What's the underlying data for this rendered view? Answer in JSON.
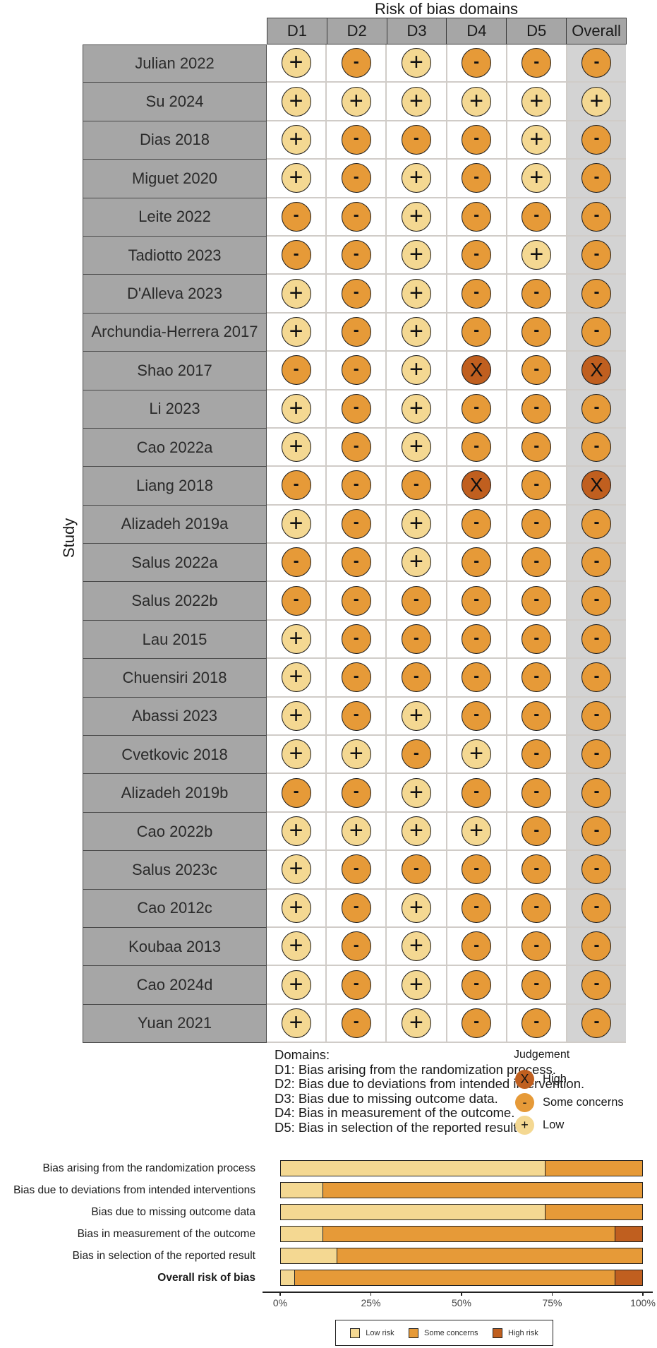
{
  "traffic_light": {
    "title": "Risk of bias domains",
    "y_label": "Study",
    "columns": [
      "D1",
      "D2",
      "D3",
      "D4",
      "D5",
      "Overall"
    ],
    "symbols": {
      "low": "+",
      "some": "-",
      "high": "X"
    },
    "colors": {
      "low": "#f4d892",
      "some": "#e69a38",
      "high": "#c05f1f",
      "label_bg": "#a6a6a6",
      "overall_bg": "#d3d3d3"
    },
    "studies": [
      {
        "name": "Julian 2022",
        "judgements": [
          "low",
          "some",
          "low",
          "some",
          "some",
          "some"
        ]
      },
      {
        "name": "Su 2024",
        "judgements": [
          "low",
          "low",
          "low",
          "low",
          "low",
          "low"
        ]
      },
      {
        "name": "Dias 2018",
        "judgements": [
          "low",
          "some",
          "some",
          "some",
          "low",
          "some"
        ]
      },
      {
        "name": "Miguet 2020",
        "judgements": [
          "low",
          "some",
          "low",
          "some",
          "low",
          "some"
        ]
      },
      {
        "name": "Leite 2022",
        "judgements": [
          "some",
          "some",
          "low",
          "some",
          "some",
          "some"
        ]
      },
      {
        "name": "Tadiotto 2023",
        "judgements": [
          "some",
          "some",
          "low",
          "some",
          "low",
          "some"
        ]
      },
      {
        "name": "D'Alleva 2023",
        "judgements": [
          "low",
          "some",
          "low",
          "some",
          "some",
          "some"
        ]
      },
      {
        "name": "Archundia-Herrera 2017",
        "judgements": [
          "low",
          "some",
          "low",
          "some",
          "some",
          "some"
        ]
      },
      {
        "name": "Shao 2017",
        "judgements": [
          "some",
          "some",
          "low",
          "high",
          "some",
          "high"
        ]
      },
      {
        "name": "Li 2023",
        "judgements": [
          "low",
          "some",
          "low",
          "some",
          "some",
          "some"
        ]
      },
      {
        "name": "Cao 2022a",
        "judgements": [
          "low",
          "some",
          "low",
          "some",
          "some",
          "some"
        ]
      },
      {
        "name": "Liang 2018",
        "judgements": [
          "some",
          "some",
          "some",
          "high",
          "some",
          "high"
        ]
      },
      {
        "name": "Alizadeh 2019a",
        "judgements": [
          "low",
          "some",
          "low",
          "some",
          "some",
          "some"
        ]
      },
      {
        "name": "Salus 2022a",
        "judgements": [
          "some",
          "some",
          "low",
          "some",
          "some",
          "some"
        ]
      },
      {
        "name": "Salus 2022b",
        "judgements": [
          "some",
          "some",
          "some",
          "some",
          "some",
          "some"
        ]
      },
      {
        "name": "Lau 2015",
        "judgements": [
          "low",
          "some",
          "some",
          "some",
          "some",
          "some"
        ]
      },
      {
        "name": "Chuensiri 2018",
        "judgements": [
          "low",
          "some",
          "some",
          "some",
          "some",
          "some"
        ]
      },
      {
        "name": "Abassi 2023",
        "judgements": [
          "low",
          "some",
          "low",
          "some",
          "some",
          "some"
        ]
      },
      {
        "name": "Cvetkovic 2018",
        "judgements": [
          "low",
          "low",
          "some",
          "low",
          "some",
          "some"
        ]
      },
      {
        "name": "Alizadeh 2019b",
        "judgements": [
          "some",
          "some",
          "low",
          "some",
          "some",
          "some"
        ]
      },
      {
        "name": "Cao 2022b",
        "judgements": [
          "low",
          "low",
          "low",
          "low",
          "some",
          "some"
        ]
      },
      {
        "name": "Salus 2023c",
        "judgements": [
          "low",
          "some",
          "some",
          "some",
          "some",
          "some"
        ]
      },
      {
        "name": "Cao 2012c",
        "judgements": [
          "low",
          "some",
          "low",
          "some",
          "some",
          "some"
        ]
      },
      {
        "name": "Koubaa 2013",
        "judgements": [
          "low",
          "some",
          "low",
          "some",
          "some",
          "some"
        ]
      },
      {
        "name": "Cao 2024d",
        "judgements": [
          "low",
          "some",
          "low",
          "some",
          "some",
          "some"
        ]
      },
      {
        "name": "Yuan 2021",
        "judgements": [
          "low",
          "some",
          "low",
          "some",
          "some",
          "some"
        ]
      }
    ],
    "domains_legend": {
      "heading": "Domains:",
      "lines": [
        "D1: Bias arising from the randomization process.",
        "D2: Bias due to deviations from intended intervention.",
        "D3: Bias due to missing outcome data.",
        "D4: Bias in measurement of the outcome.",
        "D5: Bias in selection of the reported result."
      ]
    },
    "judgement_legend": {
      "title": "Judgement",
      "items": [
        {
          "key": "high",
          "symbol": "X",
          "label": "High"
        },
        {
          "key": "some",
          "symbol": "-",
          "label": "Some concerns"
        },
        {
          "key": "low",
          "symbol": "+",
          "label": "Low"
        }
      ]
    }
  },
  "chart_data": [
    {
      "type": "table",
      "title": "Risk of bias domains",
      "ylabel": "Study",
      "columns": [
        "D1",
        "D2",
        "D3",
        "D4",
        "D5",
        "Overall"
      ],
      "legend": [
        "High",
        "Some concerns",
        "Low"
      ],
      "rows": 26
    },
    {
      "type": "bar",
      "stacked": true,
      "orientation": "horizontal",
      "categories": [
        "Bias arising from the randomization process",
        "Bias due to deviations from intended interventions",
        "Bias due to missing outcome data",
        "Bias in measurement of the outcome",
        "Bias in selection of the reported result",
        "Overall risk of bias"
      ],
      "series": [
        {
          "name": "Low risk",
          "color": "#f4d892",
          "values": [
            73.1,
            11.5,
            73.1,
            11.5,
            15.4,
            3.8
          ]
        },
        {
          "name": "Some concerns",
          "color": "#e69a38",
          "values": [
            26.9,
            88.5,
            26.9,
            80.8,
            84.6,
            88.5
          ]
        },
        {
          "name": "High risk",
          "color": "#c05f1f",
          "values": [
            0,
            0,
            0,
            7.7,
            0,
            7.7
          ]
        }
      ],
      "xlabel": "",
      "ylabel": "",
      "xlim": [
        0,
        100
      ],
      "x_ticks": [
        "0%",
        "25%",
        "50%",
        "75%",
        "100%"
      ],
      "legend_position": "bottom",
      "grid": false
    }
  ],
  "summary": {
    "ticks": [
      "0%",
      "25%",
      "50%",
      "75%",
      "100%"
    ],
    "legend": [
      {
        "key": "low",
        "label": "Low risk"
      },
      {
        "key": "some",
        "label": "Some concerns"
      },
      {
        "key": "high",
        "label": "High risk"
      }
    ]
  }
}
